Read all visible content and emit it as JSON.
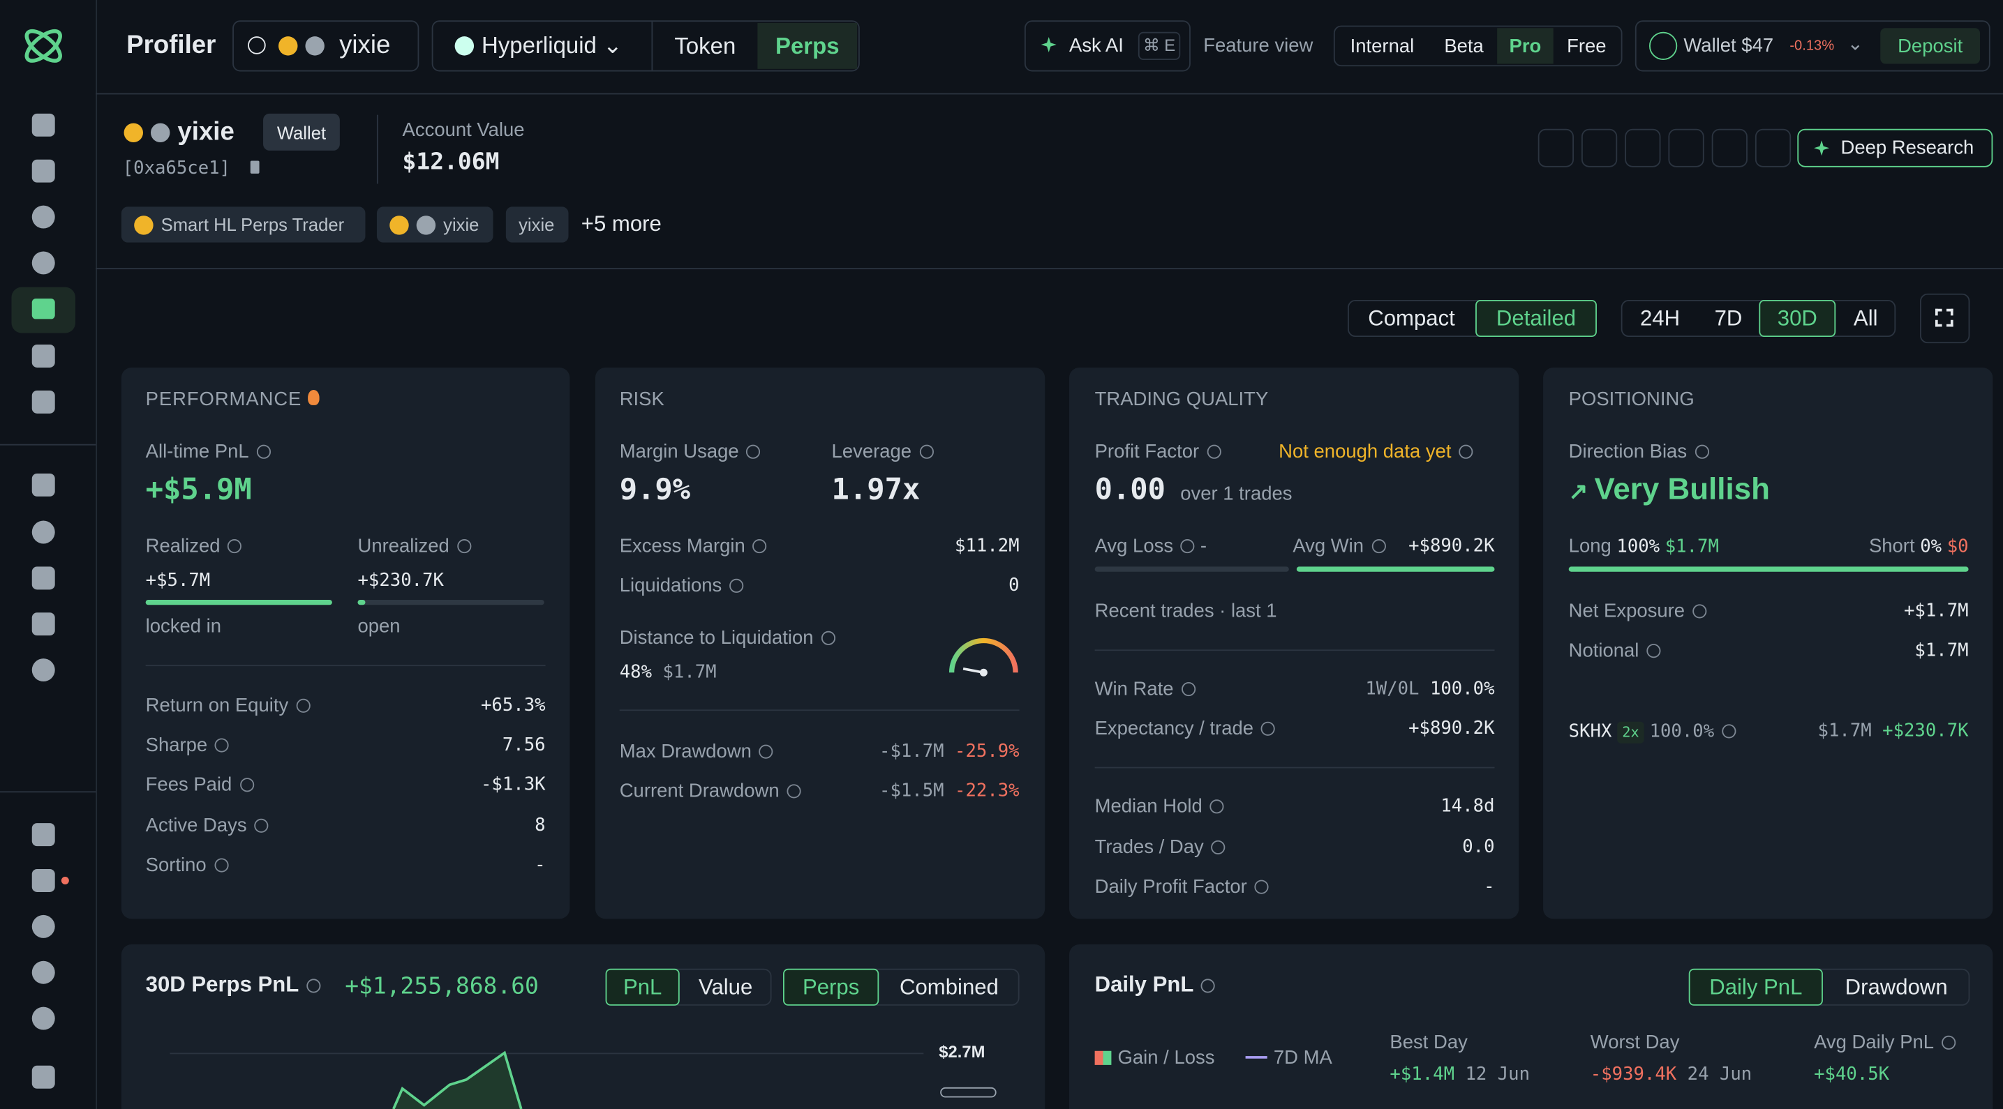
{
  "topbar": {
    "title": "Profiler",
    "search": "yixie",
    "chain": "Hyperliquid",
    "tabs": [
      "Token",
      "Perps"
    ],
    "ask_ai": "Ask AI",
    "shortcut": "⌘ E",
    "feature_view_label": "Feature view",
    "feature_views": [
      "Internal",
      "Beta",
      "Pro",
      "Free"
    ],
    "wallet": "Wallet $47",
    "wallet_change": "-0.13%",
    "deposit": "Deposit"
  },
  "profile": {
    "name": "yixie",
    "badge": "Wallet",
    "address": "[0xa65ce1]",
    "account_value_label": "Account Value",
    "account_value": "$12.06M",
    "tags": [
      "Smart HL Perps Trader",
      "yixie",
      "yixie"
    ],
    "more": "+5 more",
    "deep_research": "Deep Research"
  },
  "controls": {
    "views": [
      "Compact",
      "Detailed"
    ],
    "ranges": [
      "24H",
      "7D",
      "30D",
      "All"
    ]
  },
  "performance": {
    "title": "PERFORMANCE",
    "all_time_label": "All-time PnL",
    "all_time": "+$5.9M",
    "realized_label": "Realized",
    "realized": "+$5.7M",
    "realized_note": "locked in",
    "unrealized_label": "Unrealized",
    "unrealized": "+$230.7K",
    "unrealized_note": "open",
    "stats": [
      {
        "label": "Return on Equity",
        "value": "+65.3%"
      },
      {
        "label": "Sharpe",
        "value": "7.56"
      },
      {
        "label": "Fees Paid",
        "value": "-$1.3K"
      },
      {
        "label": "Active Days",
        "value": "8"
      },
      {
        "label": "Sortino",
        "value": "-"
      }
    ]
  },
  "risk": {
    "title": "RISK",
    "margin_usage_label": "Margin Usage",
    "margin_usage": "9.9%",
    "leverage_label": "Leverage",
    "leverage": "1.97x",
    "excess_margin_label": "Excess Margin",
    "excess_margin": "$11.2M",
    "liquidations_label": "Liquidations",
    "liquidations": "0",
    "distance_label": "Distance to Liquidation",
    "distance_pct": "48%",
    "distance_value": "$1.7M",
    "max_dd_label": "Max Drawdown",
    "max_dd": "-$1.7M",
    "max_dd_pct": "-25.9%",
    "cur_dd_label": "Current Drawdown",
    "cur_dd": "-$1.5M",
    "cur_dd_pct": "-22.3%"
  },
  "trading_quality": {
    "title": "TRADING QUALITY",
    "profit_factor_label": "Profit Factor",
    "warning": "Not enough data yet",
    "profit_factor": "0.00",
    "trades_note": "over 1 trades",
    "avg_loss_label": "Avg Loss",
    "avg_loss": "-",
    "avg_win_label": "Avg Win",
    "avg_win": "+$890.2K",
    "recent": "Recent trades · last 1",
    "win_rate_label": "Win Rate",
    "win_rate_record": "1W/0L",
    "win_rate": "100.0%",
    "expectancy_label": "Expectancy / trade",
    "expectancy": "+$890.2K",
    "median_hold_label": "Median Hold",
    "median_hold": "14.8d",
    "trades_day_label": "Trades / Day",
    "trades_day": "0.0",
    "dpf_label": "Daily Profit Factor",
    "dpf": "-"
  },
  "positioning": {
    "title": "POSITIONING",
    "bias_label": "Direction Bias",
    "bias": "Very Bullish",
    "long_label": "Long",
    "long_pct": "100%",
    "long_value": "$1.7M",
    "short_label": "Short",
    "short_pct": "0%",
    "short_value": "$0",
    "net_exposure_label": "Net Exposure",
    "net_exposure": "+$1.7M",
    "notional_label": "Notional",
    "notional": "$1.7M",
    "position": {
      "symbol": "SKHX",
      "leverage": "2x",
      "share": "100.0%",
      "size": "$1.7M",
      "pnl": "+$230.7K"
    }
  },
  "perps_pnl": {
    "title": "30D Perps PnL",
    "total": "+$1,255,868.60",
    "modes": [
      "PnL",
      "Value"
    ],
    "scopes": [
      "Perps",
      "Combined"
    ],
    "max_label": "$2.7M"
  },
  "daily_pnl": {
    "title": "Daily PnL",
    "modes": [
      "Daily PnL",
      "Drawdown"
    ],
    "legend": [
      "Gain / Loss",
      "7D MA"
    ],
    "best_label": "Best Day",
    "best": "+$1.4M",
    "best_date": "12 Jun",
    "worst_label": "Worst Day",
    "worst": "-$939.4K",
    "worst_date": "24 Jun",
    "avg_label": "Avg Daily PnL",
    "avg": "+$40.5K"
  }
}
